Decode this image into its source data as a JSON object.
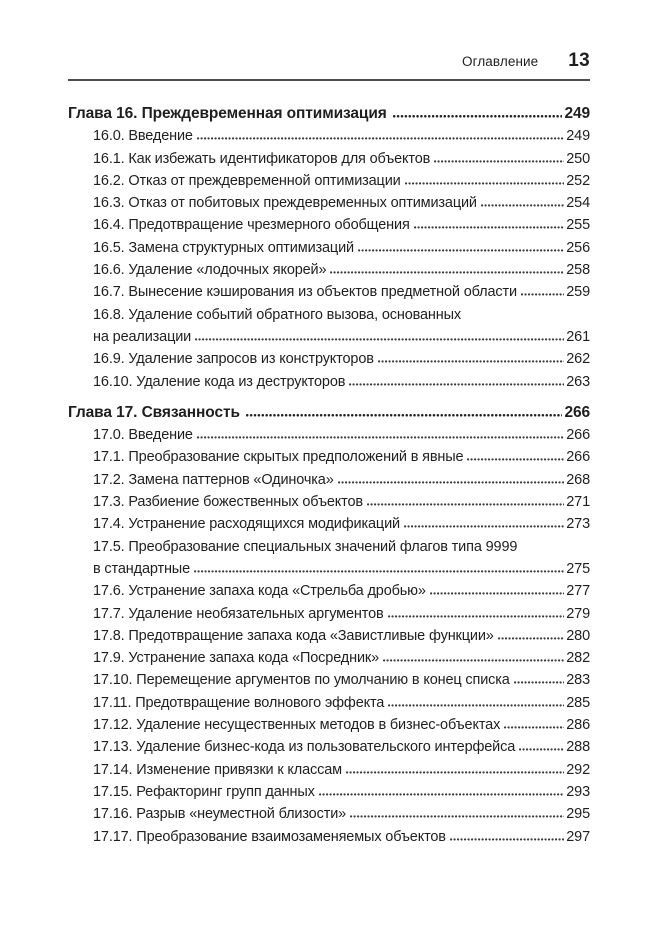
{
  "header": {
    "running_title": "Оглавление",
    "page_number": "13"
  },
  "colors": {
    "background": "#ffffff",
    "text": "#1f1f1f",
    "rule": "#4d4d4d",
    "leader_dots": "#3c3c3c"
  },
  "chapters": [
    {
      "title": "Глава 16. Преждевременная оптимизация",
      "page": "249",
      "entries": [
        {
          "lines": [
            "16.0. Введение"
          ],
          "page": "249"
        },
        {
          "lines": [
            "16.1. Как избежать идентификаторов для объектов"
          ],
          "page": "250"
        },
        {
          "lines": [
            "16.2. Отказ от преждевременной оптимизации"
          ],
          "page": "252"
        },
        {
          "lines": [
            "16.3. Отказ от побитовых преждевременных оптимизаций"
          ],
          "page": "254"
        },
        {
          "lines": [
            "16.4. Предотвращение чрезмерного обобщения"
          ],
          "page": "255"
        },
        {
          "lines": [
            "16.5. Замена структурных оптимизаций"
          ],
          "page": "256"
        },
        {
          "lines": [
            "16.6. Удаление «лодочных якорей»"
          ],
          "page": "258"
        },
        {
          "lines": [
            "16.7. Вынесение кэширования из объектов предметной области"
          ],
          "page": "259"
        },
        {
          "lines": [
            "16.8. Удаление событий обратного вызова, основанных",
            "на реализации"
          ],
          "page": "261"
        },
        {
          "lines": [
            "16.9. Удаление запросов из конструкторов"
          ],
          "page": "262"
        },
        {
          "lines": [
            "16.10. Удаление кода из деструкторов"
          ],
          "page": "263"
        }
      ]
    },
    {
      "title": "Глава 17. Связанность",
      "page": "266",
      "entries": [
        {
          "lines": [
            "17.0. Введение"
          ],
          "page": "266"
        },
        {
          "lines": [
            "17.1. Преобразование скрытых предположений в явные"
          ],
          "page": "266"
        },
        {
          "lines": [
            "17.2. Замена паттернов «Одиночка»"
          ],
          "page": "268"
        },
        {
          "lines": [
            "17.3. Разбиение божественных объектов"
          ],
          "page": "271"
        },
        {
          "lines": [
            "17.4. Устранение расходящихся модификаций"
          ],
          "page": "273"
        },
        {
          "lines": [
            "17.5. Преобразование специальных значений флагов типа 9999",
            "в стандартные"
          ],
          "page": "275"
        },
        {
          "lines": [
            "17.6. Устранение запаха кода «Стрельба дробью»"
          ],
          "page": "277"
        },
        {
          "lines": [
            "17.7. Удаление необязательных аргументов"
          ],
          "page": "279"
        },
        {
          "lines": [
            "17.8. Предотвращение запаха кода «Завистливые функции»"
          ],
          "page": "280"
        },
        {
          "lines": [
            "17.9. Устранение запаха кода «Посредник»"
          ],
          "page": "282"
        },
        {
          "lines": [
            "17.10. Перемещение аргументов по умолчанию в конец списка"
          ],
          "page": "283"
        },
        {
          "lines": [
            "17.11. Предотвращение волнового эффекта"
          ],
          "page": "285"
        },
        {
          "lines": [
            "17.12. Удаление несущественных методов в бизнес-объектах"
          ],
          "page": "286"
        },
        {
          "lines": [
            "17.13. Удаление бизнес-кода из пользовательского интерфейса"
          ],
          "page": "288"
        },
        {
          "lines": [
            "17.14. Изменение привязки к классам"
          ],
          "page": "292"
        },
        {
          "lines": [
            "17.15. Рефакторинг групп данных"
          ],
          "page": "293"
        },
        {
          "lines": [
            "17.16. Разрыв «неуместной близости»"
          ],
          "page": "295"
        },
        {
          "lines": [
            "17.17. Преобразование взаимозаменяемых объектов"
          ],
          "page": "297"
        }
      ]
    }
  ]
}
